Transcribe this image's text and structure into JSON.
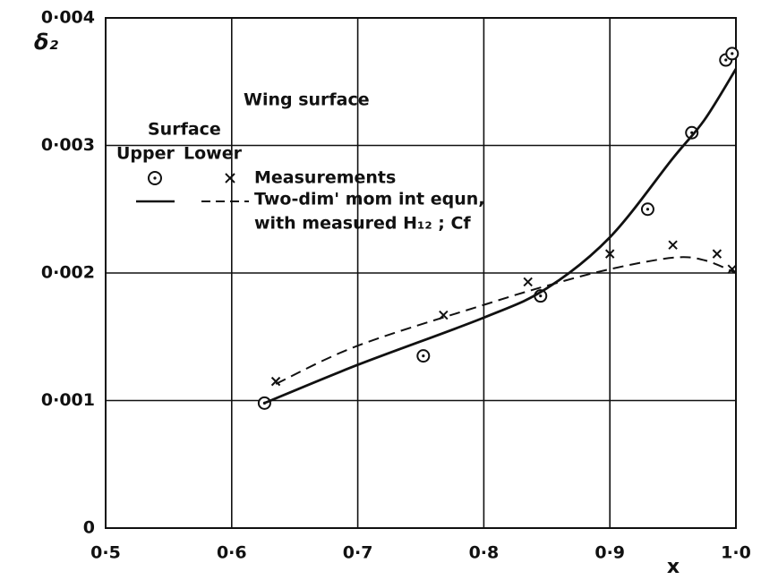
{
  "chart_data": {
    "type": "scatter",
    "ylabel": "δ₂",
    "xlabel": "x",
    "xlim": [
      0.5,
      1.0
    ],
    "xticks": [
      {
        "value": 0.5,
        "label": "0·5"
      },
      {
        "value": 0.6,
        "label": "0·6"
      },
      {
        "value": 0.7,
        "label": "0·7"
      },
      {
        "value": 0.8,
        "label": "0·8"
      },
      {
        "value": 0.9,
        "label": "0·9"
      },
      {
        "value": 1.0,
        "label": "1·0"
      }
    ],
    "ylim": [
      0,
      0.004
    ],
    "yticks": [
      0,
      {
        "value": 0.001,
        "label": "0·001"
      },
      {
        "value": 0.002,
        "label": "0·002"
      },
      {
        "value": 0.003,
        "label": "0·003"
      },
      {
        "value": 0.004,
        "label": "0·004"
      }
    ],
    "grid": true,
    "legend": {
      "title": "Wing surface",
      "header": "Surface",
      "columns": [
        "Upper",
        "Lower"
      ],
      "rows": [
        "Measurements",
        "Two-dim' mom int equn,",
        "with measured H₁₂ ; Cf"
      ]
    },
    "series": [
      {
        "marker": "circle",
        "color": "#111111",
        "x": [
          0.626,
          0.752,
          0.845,
          0.93,
          0.965,
          0.992,
          0.997
        ],
        "values": [
          0.00098,
          0.00135,
          0.00182,
          0.0025,
          0.0031,
          0.00367,
          0.00372
        ]
      },
      {
        "marker": "cross",
        "color": "#111111",
        "x": [
          0.635,
          0.768,
          0.835,
          0.9,
          0.95,
          0.985,
          0.997
        ],
        "values": [
          0.00115,
          0.00167,
          0.00193,
          0.00215,
          0.00222,
          0.00215,
          0.00203
        ]
      },
      {
        "line": "solid",
        "color": "#111111",
        "x": [
          0.626,
          0.7,
          0.8,
          0.85,
          0.9,
          0.95,
          0.975,
          1.0
        ],
        "values": [
          0.00098,
          0.00128,
          0.00165,
          0.00188,
          0.00228,
          0.0029,
          0.0032,
          0.0036
        ]
      },
      {
        "line": "dashed",
        "color": "#111111",
        "x": [
          0.635,
          0.7,
          0.8,
          0.85,
          0.9,
          0.95,
          0.975,
          1.0
        ],
        "values": [
          0.00113,
          0.00143,
          0.00175,
          0.0019,
          0.00203,
          0.00212,
          0.0021,
          0.002
        ]
      }
    ]
  }
}
